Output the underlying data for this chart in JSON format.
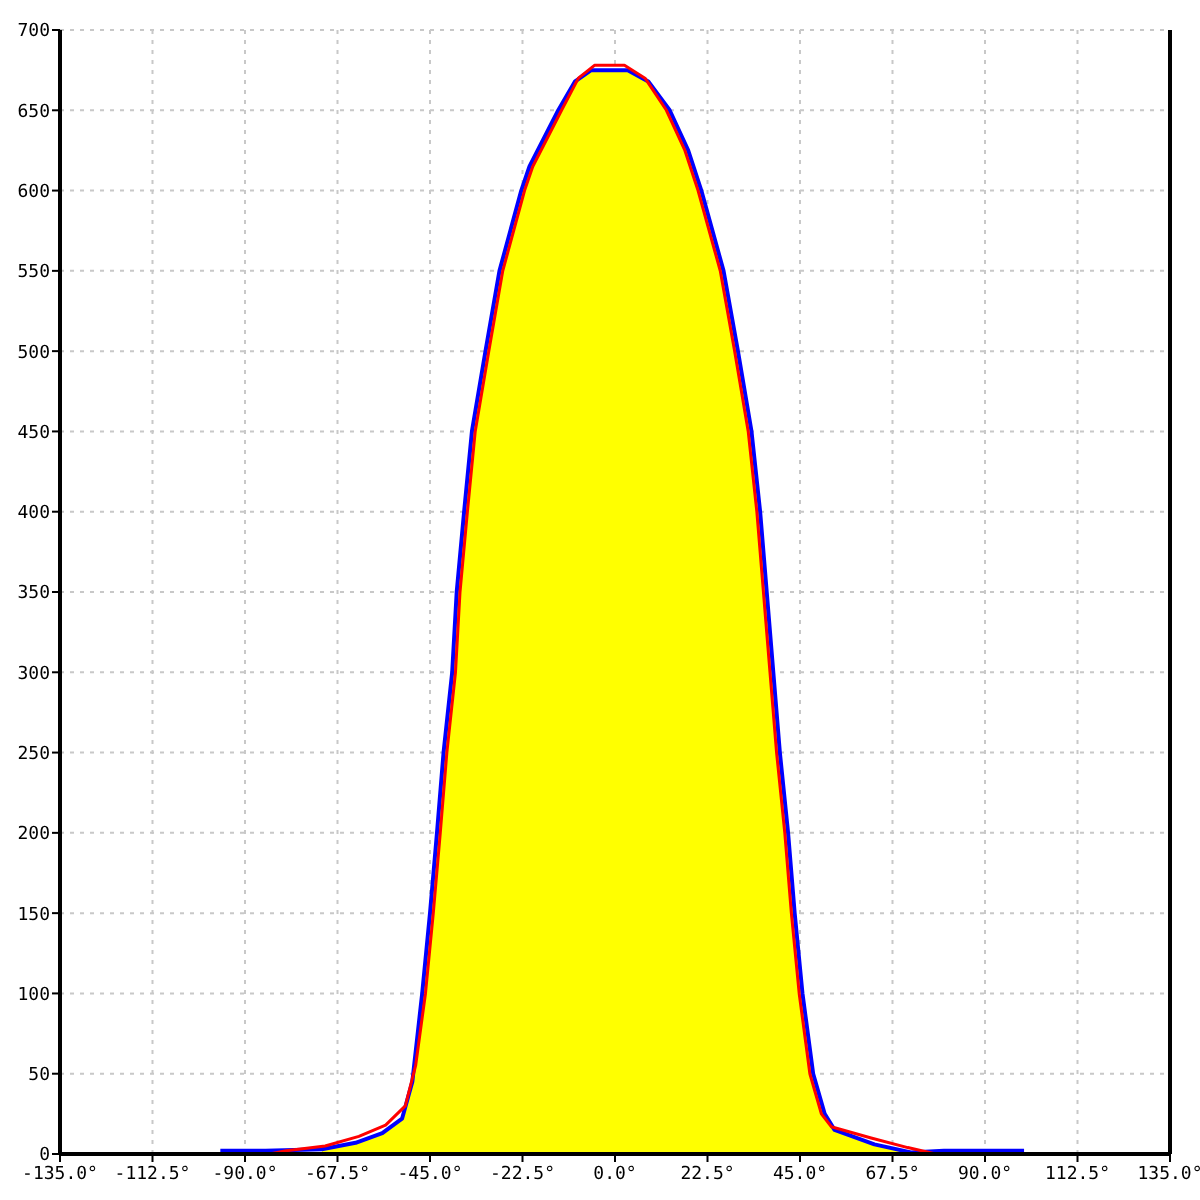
{
  "chart_data": {
    "type": "line",
    "xlim": [
      -135,
      135
    ],
    "xticks": [
      {
        "value": -135,
        "label": "-135.0°"
      },
      {
        "value": -112.5,
        "label": "-112.5°"
      },
      {
        "value": -90,
        "label": "-90.0°"
      },
      {
        "value": -67.5,
        "label": "-67.5°"
      },
      {
        "value": -45,
        "label": "-45.0°"
      },
      {
        "value": -22.5,
        "label": "-22.5°"
      },
      {
        "value": 0,
        "label": "0.0°"
      },
      {
        "value": 22.5,
        "label": "22.5°"
      },
      {
        "value": 45,
        "label": "45.0°"
      },
      {
        "value": 67.5,
        "label": "67.5°"
      },
      {
        "value": 90,
        "label": "90.0°"
      },
      {
        "value": 112.5,
        "label": "112.5°"
      },
      {
        "value": 135,
        "label": "135.0°"
      }
    ],
    "ylim": [
      0,
      700
    ],
    "yticks": [
      0,
      50,
      100,
      150,
      200,
      250,
      300,
      350,
      400,
      450,
      500,
      550,
      600,
      650,
      700
    ],
    "grid": true,
    "series": [
      {
        "type": "area",
        "color": "#ffff00",
        "x": [
          -71.3,
          -63.1,
          -56.6,
          -51.8,
          -49.3,
          -46.9,
          -45,
          -43.3,
          -41.7,
          -39.6,
          -38.5,
          -36.7,
          -34.8,
          -31.5,
          -28.1,
          -22.8,
          -20.8,
          -13.8,
          -9.7,
          -5.8,
          3.1,
          8.1,
          13.3,
          17.8,
          21,
          26.4,
          29.9,
          33.2,
          35.3,
          36.9,
          38.5,
          40.1,
          42.1,
          43.7,
          45.6,
          48.2,
          51,
          53.4,
          63.1,
          72
        ],
        "values": [
          3,
          7,
          13,
          22,
          45,
          100,
          150,
          200,
          250,
          300,
          350,
          400,
          450,
          500,
          550,
          600,
          615,
          650,
          668,
          675,
          675,
          668,
          650,
          625,
          600,
          550,
          500,
          450,
          400,
          350,
          300,
          250,
          200,
          150,
          100,
          50,
          25,
          15,
          6,
          1
        ]
      },
      {
        "color": "#0000ff",
        "x": [
          -96,
          -85,
          -71.3,
          -63.1,
          -56.6,
          -51.8,
          -49.3,
          -46.9,
          -45,
          -43.3,
          -41.7,
          -39.6,
          -38.5,
          -36.7,
          -34.8,
          -31.5,
          -28.1,
          -22.8,
          -20.8,
          -13.8,
          -9.7,
          -5.8,
          3.1,
          8.1,
          13.3,
          17.8,
          21,
          26.4,
          29.9,
          33.2,
          35.3,
          36.9,
          38.5,
          40.1,
          42.1,
          43.7,
          45.6,
          48.2,
          51,
          53.4,
          63.1,
          72,
          80,
          99.5
        ],
        "values": [
          2,
          2,
          3,
          7,
          13,
          22,
          45,
          100,
          150,
          200,
          250,
          300,
          350,
          400,
          450,
          500,
          550,
          600,
          615,
          650,
          668,
          675,
          675,
          668,
          650,
          625,
          600,
          550,
          500,
          450,
          400,
          350,
          300,
          250,
          200,
          150,
          100,
          50,
          25,
          15,
          6,
          1,
          2,
          2
        ]
      },
      {
        "color": "#ff0000",
        "x": [
          -135,
          -84,
          -80,
          -70.5,
          -62.3,
          -55.8,
          -51,
          -48.5,
          -46.1,
          -44.2,
          -42.5,
          -40.9,
          -38.8,
          -37.7,
          -35.9,
          -34,
          -30.7,
          -27.3,
          -22,
          -20,
          -13,
          -8.9,
          -5,
          2.3,
          7.3,
          12.5,
          17,
          20.2,
          25.6,
          29.1,
          32.4,
          34.5,
          36.1,
          37.7,
          39.3,
          41.3,
          42.9,
          44.8,
          47.4,
          50.2,
          52.6,
          62.3,
          71.2,
          78,
          135
        ],
        "values": [
          0,
          0,
          2,
          5,
          11,
          18,
          30,
          55,
          100,
          150,
          200,
          250,
          300,
          350,
          400,
          450,
          500,
          550,
          600,
          615,
          650,
          670,
          678,
          678,
          670,
          650,
          625,
          600,
          550,
          500,
          450,
          400,
          350,
          300,
          250,
          200,
          150,
          100,
          50,
          25,
          17,
          10,
          4,
          0,
          0
        ]
      }
    ]
  }
}
